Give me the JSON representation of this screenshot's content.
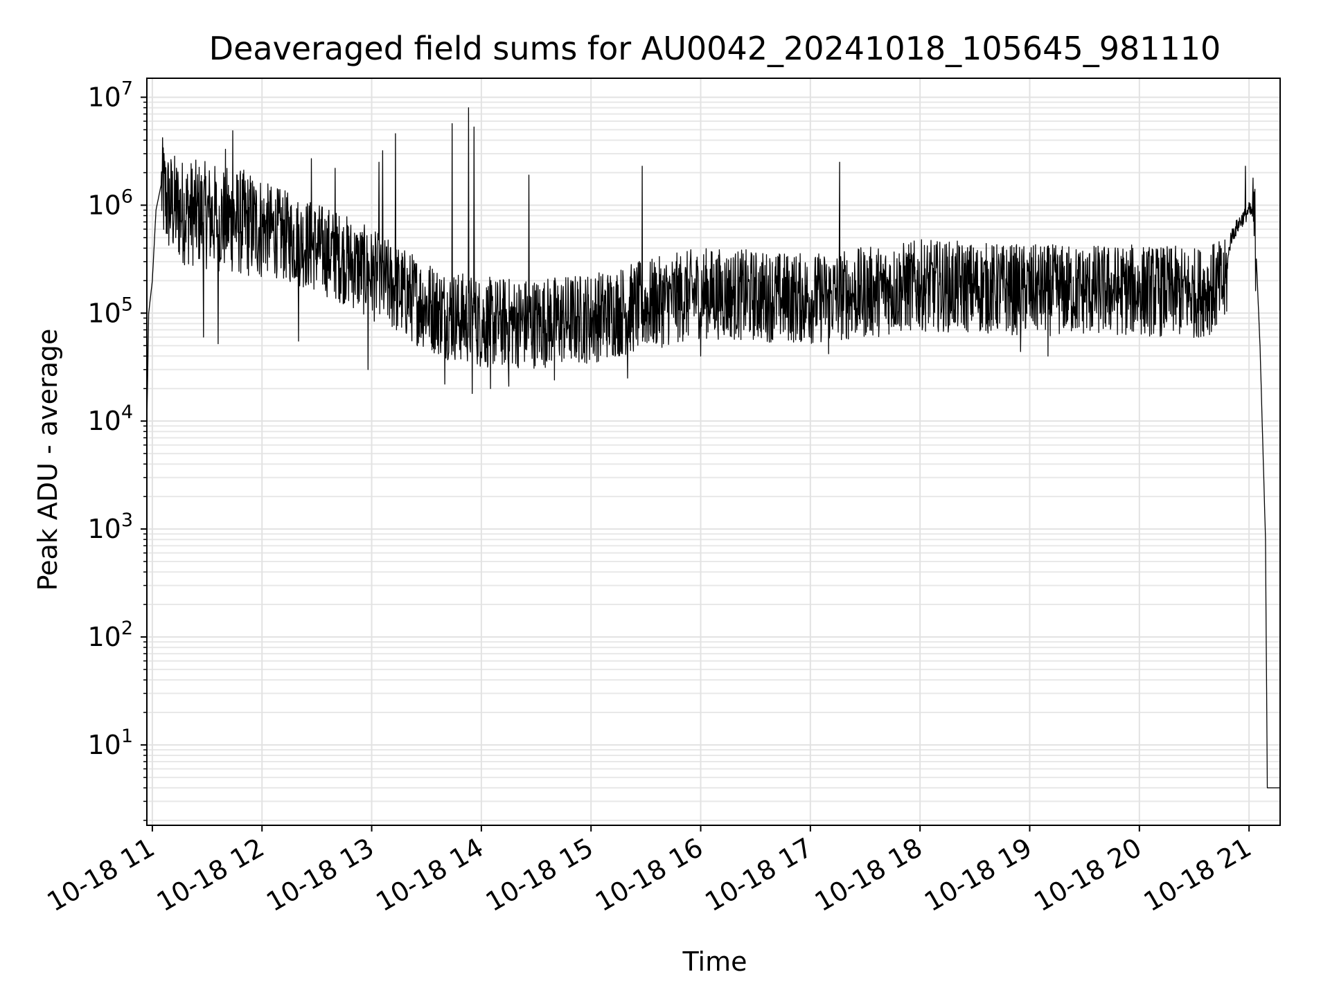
{
  "chart_data": {
    "type": "line",
    "title": "Deaveraged field sums for AU0042_20241018_105645_981110",
    "xlabel": "Time",
    "ylabel": "Peak ADU - average",
    "yscale": "log",
    "ylim": [
      1.8,
      15000000
    ],
    "xlim": [
      "2024-10-18 10:57",
      "2024-10-18 21:17"
    ],
    "grid": "on (major and minor)",
    "line_color": "#000000",
    "x_ticks": [
      {
        "label": "10-18 11",
        "time": "2024-10-18 11:00"
      },
      {
        "label": "10-18 12",
        "time": "2024-10-18 12:00"
      },
      {
        "label": "10-18 13",
        "time": "2024-10-18 13:00"
      },
      {
        "label": "10-18 14",
        "time": "2024-10-18 14:00"
      },
      {
        "label": "10-18 15",
        "time": "2024-10-18 15:00"
      },
      {
        "label": "10-18 16",
        "time": "2024-10-18 16:00"
      },
      {
        "label": "10-18 17",
        "time": "2024-10-18 17:00"
      },
      {
        "label": "10-18 18",
        "time": "2024-10-18 18:00"
      },
      {
        "label": "10-18 19",
        "time": "2024-10-18 19:00"
      },
      {
        "label": "10-18 20",
        "time": "2024-10-18 20:00"
      },
      {
        "label": "10-18 21",
        "time": "2024-10-18 21:00"
      }
    ],
    "y_ticks": [
      {
        "base": "10",
        "exp": "1",
        "value": 10
      },
      {
        "base": "10",
        "exp": "2",
        "value": 100
      },
      {
        "base": "10",
        "exp": "3",
        "value": 1000
      },
      {
        "base": "10",
        "exp": "4",
        "value": 10000
      },
      {
        "base": "10",
        "exp": "5",
        "value": 100000
      },
      {
        "base": "10",
        "exp": "6",
        "value": 1000000
      },
      {
        "base": "10",
        "exp": "7",
        "value": 10000000
      }
    ],
    "series": [
      {
        "points": [
          {
            "t": "2024-10-18 10:57",
            "v": 9000
          },
          {
            "t": "2024-10-18 10:58",
            "v": 100000
          },
          {
            "t": "2024-10-18 11:00",
            "v": 200000
          },
          {
            "t": "2024-10-18 11:02",
            "v": 900000
          },
          {
            "t": "2024-10-18 11:05",
            "v": 1600000
          },
          {
            "t": "2024-10-18 11:08",
            "v": 1200000
          },
          {
            "t": "2024-10-18 11:15",
            "v": 1000000
          },
          {
            "t": "2024-10-18 11:30",
            "v": 900000
          },
          {
            "t": "2024-10-18 11:45",
            "v": 800000
          },
          {
            "t": "2024-10-18 12:00",
            "v": 700000
          },
          {
            "t": "2024-10-18 12:15",
            "v": 550000
          },
          {
            "t": "2024-10-18 12:30",
            "v": 450000
          },
          {
            "t": "2024-10-18 12:45",
            "v": 350000
          },
          {
            "t": "2024-10-18 13:00",
            "v": 250000
          },
          {
            "t": "2024-10-18 13:20",
            "v": 160000
          },
          {
            "t": "2024-10-18 13:40",
            "v": 110000
          },
          {
            "t": "2024-10-18 14:00",
            "v": 90000
          },
          {
            "t": "2024-10-18 14:30",
            "v": 90000
          },
          {
            "t": "2024-10-18 15:00",
            "v": 100000
          },
          {
            "t": "2024-10-18 15:30",
            "v": 130000
          },
          {
            "t": "2024-10-18 16:00",
            "v": 170000
          },
          {
            "t": "2024-10-18 16:30",
            "v": 160000
          },
          {
            "t": "2024-10-18 17:00",
            "v": 150000
          },
          {
            "t": "2024-10-18 17:30",
            "v": 170000
          },
          {
            "t": "2024-10-18 18:00",
            "v": 200000
          },
          {
            "t": "2024-10-18 18:30",
            "v": 190000
          },
          {
            "t": "2024-10-18 19:00",
            "v": 180000
          },
          {
            "t": "2024-10-18 19:30",
            "v": 180000
          },
          {
            "t": "2024-10-18 20:00",
            "v": 180000
          },
          {
            "t": "2024-10-18 20:30",
            "v": 170000
          },
          {
            "t": "2024-10-18 20:47",
            "v": 200000
          },
          {
            "t": "2024-10-18 20:50",
            "v": 500000
          },
          {
            "t": "2024-10-18 20:55",
            "v": 700000
          },
          {
            "t": "2024-10-18 21:00",
            "v": 900000
          },
          {
            "t": "2024-10-18 21:03",
            "v": 800000
          },
          {
            "t": "2024-10-18 21:06",
            "v": 50000
          },
          {
            "t": "2024-10-18 21:09",
            "v": 800
          },
          {
            "t": "2024-10-18 21:10",
            "v": 4
          },
          {
            "t": "2024-10-18 21:17",
            "v": 4
          }
        ],
        "spikes": [
          {
            "t": "2024-10-18 11:06",
            "v": 3400000
          },
          {
            "t": "2024-10-18 11:40",
            "v": 3300000
          },
          {
            "t": "2024-10-18 11:44",
            "v": 4900000
          },
          {
            "t": "2024-10-18 12:27",
            "v": 2700000
          },
          {
            "t": "2024-10-18 12:40",
            "v": 2200000
          },
          {
            "t": "2024-10-18 13:04",
            "v": 2500000
          },
          {
            "t": "2024-10-18 13:06",
            "v": 3200000
          },
          {
            "t": "2024-10-18 13:13",
            "v": 4600000
          },
          {
            "t": "2024-10-18 13:44",
            "v": 5700000
          },
          {
            "t": "2024-10-18 13:53",
            "v": 8000000
          },
          {
            "t": "2024-10-18 13:56",
            "v": 5300000
          },
          {
            "t": "2024-10-18 14:26",
            "v": 1900000
          },
          {
            "t": "2024-10-18 15:28",
            "v": 2300000
          },
          {
            "t": "2024-10-18 17:16",
            "v": 2500000
          },
          {
            "t": "2024-10-18 20:58",
            "v": 2300000
          }
        ],
        "dips": [
          {
            "t": "2024-10-18 11:28",
            "v": 60000
          },
          {
            "t": "2024-10-18 11:36",
            "v": 52000
          },
          {
            "t": "2024-10-18 12:20",
            "v": 55000
          },
          {
            "t": "2024-10-18 12:58",
            "v": 30000
          },
          {
            "t": "2024-10-18 13:40",
            "v": 22000
          },
          {
            "t": "2024-10-18 13:55",
            "v": 18000
          },
          {
            "t": "2024-10-18 14:05",
            "v": 20000
          },
          {
            "t": "2024-10-18 14:15",
            "v": 21000
          },
          {
            "t": "2024-10-18 14:40",
            "v": 24000
          },
          {
            "t": "2024-10-18 15:20",
            "v": 25000
          },
          {
            "t": "2024-10-18 16:00",
            "v": 40000
          },
          {
            "t": "2024-10-18 17:10",
            "v": 42000
          },
          {
            "t": "2024-10-18 18:55",
            "v": 44000
          },
          {
            "t": "2024-10-18 19:10",
            "v": 40000
          }
        ]
      }
    ]
  }
}
